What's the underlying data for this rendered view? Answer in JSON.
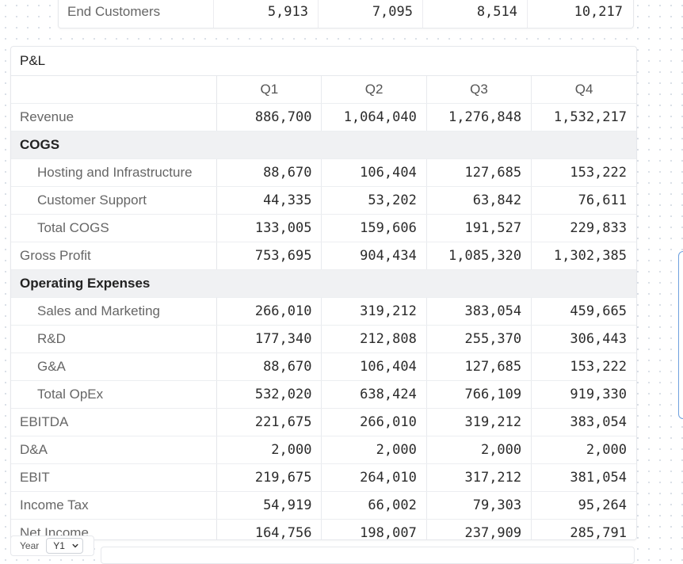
{
  "top_table": {
    "label": "End Customers",
    "values": [
      "5,913",
      "7,095",
      "8,514",
      "10,217"
    ]
  },
  "pl": {
    "title": "P&L",
    "columns": [
      "Q1",
      "Q2",
      "Q3",
      "Q4"
    ],
    "rows": [
      {
        "label": "Revenue",
        "values": [
          "886,700",
          "1,064,040",
          "1,276,848",
          "1,532,217"
        ]
      },
      {
        "label": "COGS",
        "section": true
      },
      {
        "label": "Hosting and Infrastructure",
        "values": [
          "88,670",
          "106,404",
          "127,685",
          "153,222"
        ]
      },
      {
        "label": "Customer Support",
        "values": [
          "44,335",
          "53,202",
          "63,842",
          "76,611"
        ]
      },
      {
        "label": "Total COGS",
        "values": [
          "133,005",
          "159,606",
          "191,527",
          "229,833"
        ]
      },
      {
        "label": "Gross Profit",
        "values": [
          "753,695",
          "904,434",
          "1,085,320",
          "1,302,385"
        ]
      },
      {
        "label": "Operating Expenses",
        "section": true
      },
      {
        "label": "Sales and Marketing",
        "values": [
          "266,010",
          "319,212",
          "383,054",
          "459,665"
        ]
      },
      {
        "label": "R&D",
        "values": [
          "177,340",
          "212,808",
          "255,370",
          "306,443"
        ]
      },
      {
        "label": "G&A",
        "values": [
          "88,670",
          "106,404",
          "127,685",
          "153,222"
        ]
      },
      {
        "label": "Total OpEx",
        "values": [
          "532,020",
          "638,424",
          "766,109",
          "919,330"
        ]
      },
      {
        "label": "EBITDA",
        "values": [
          "221,675",
          "266,010",
          "319,212",
          "383,054"
        ]
      },
      {
        "label": "D&A",
        "values": [
          "2,000",
          "2,000",
          "2,000",
          "2,000"
        ]
      },
      {
        "label": "EBIT",
        "values": [
          "219,675",
          "264,010",
          "317,212",
          "381,054"
        ]
      },
      {
        "label": "Income Tax",
        "values": [
          "54,919",
          "66,002",
          "79,303",
          "95,264"
        ]
      },
      {
        "label": "Net Income",
        "values": [
          "164,756",
          "198,007",
          "237,909",
          "285,791"
        ]
      }
    ]
  },
  "year_control": {
    "label": "Year",
    "selected": "Y1",
    "icon": "chevron-down-icon"
  }
}
